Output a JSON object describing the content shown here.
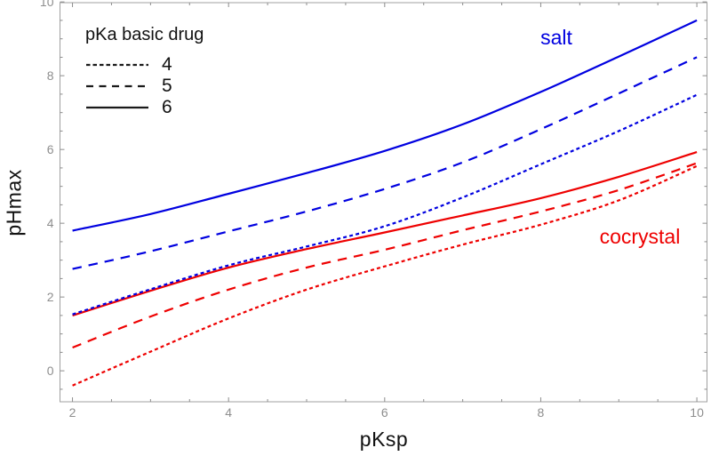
{
  "chart_data": {
    "type": "line",
    "title": "",
    "xlabel": "pKsp",
    "ylabel": "pHmax",
    "xlim": [
      1.84,
      10.13
    ],
    "ylim": [
      -0.84,
      9.98
    ],
    "x_ticks": [
      2,
      4,
      6,
      8,
      10
    ],
    "y_ticks": [
      0,
      2,
      4,
      6,
      8,
      10
    ],
    "minor_tick_step": 0.5,
    "grid": false,
    "legend_position": "top-left",
    "x": [
      2,
      3,
      4,
      5,
      6,
      7,
      8,
      9,
      10
    ],
    "series": [
      {
        "name": "cocrystal-pKa4",
        "group": "cocrystal",
        "pKa": 4,
        "style": "fine-dashed",
        "color": "#ee0000",
        "values": [
          -0.4,
          0.52,
          1.42,
          2.2,
          2.83,
          3.42,
          3.96,
          4.62,
          5.55
        ]
      },
      {
        "name": "cocrystal-pKa5",
        "group": "cocrystal",
        "pKa": 5,
        "style": "dashed",
        "color": "#ee0000",
        "values": [
          0.63,
          1.47,
          2.2,
          2.8,
          3.28,
          3.81,
          4.32,
          4.9,
          5.63
        ]
      },
      {
        "name": "cocrystal-pKa6",
        "group": "cocrystal",
        "pKa": 6,
        "style": "solid",
        "color": "#ee0000",
        "values": [
          1.5,
          2.17,
          2.8,
          3.3,
          3.75,
          4.21,
          4.68,
          5.26,
          5.93
        ]
      },
      {
        "name": "salt-pKa4",
        "group": "salt",
        "pKa": 4,
        "style": "fine-dashed",
        "color": "#0000e0",
        "values": [
          1.53,
          2.21,
          2.86,
          3.37,
          3.92,
          4.7,
          5.6,
          6.5,
          7.48
        ]
      },
      {
        "name": "salt-pKa5",
        "group": "salt",
        "pKa": 5,
        "style": "dashed",
        "color": "#0000e0",
        "values": [
          2.76,
          3.24,
          3.78,
          4.32,
          4.93,
          5.65,
          6.55,
          7.52,
          8.5
        ]
      },
      {
        "name": "salt-pKa6",
        "group": "salt",
        "pKa": 6,
        "style": "solid",
        "color": "#0000e0",
        "values": [
          3.8,
          4.25,
          4.8,
          5.36,
          5.96,
          6.68,
          7.56,
          8.52,
          9.5
        ]
      }
    ],
    "annotations": [
      {
        "text": "salt",
        "color": "#0000e0",
        "x": 8.2,
        "y": 8.85
      },
      {
        "text": "cocrystal",
        "color": "#ee0000",
        "x": 9.27,
        "y": 3.45
      }
    ],
    "legend": {
      "title": "pKa basic drug",
      "entries": [
        {
          "label": "4",
          "style": "fine-dashed"
        },
        {
          "label": "5",
          "style": "dashed"
        },
        {
          "label": "6",
          "style": "solid"
        }
      ]
    }
  },
  "colors": {
    "frame": "#a0a0a0",
    "tick": "#8c8c8c",
    "tick_label": "#8e8e8e",
    "legend_line": "#1a1a1a",
    "text": "#111111"
  }
}
